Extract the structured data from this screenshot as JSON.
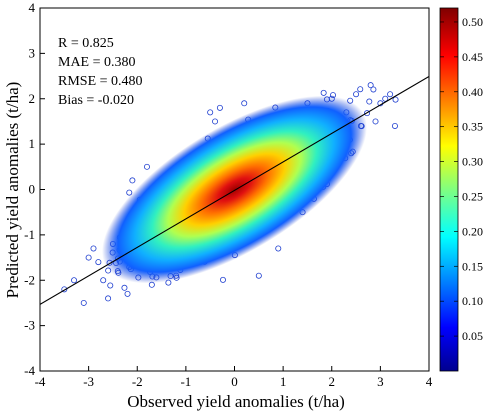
{
  "chart_data": {
    "type": "scatter",
    "title": "",
    "xlabel": "Observed yield  anomalies (t/ha)",
    "ylabel": "Predicted yield  anomalies (t/ha)",
    "xlim": [
      -4,
      4
    ],
    "ylim": [
      -4,
      4
    ],
    "xticks": [
      "-4",
      "-3",
      "-2",
      "-1",
      "0",
      "1",
      "2",
      "3",
      "4"
    ],
    "yticks": [
      "-4",
      "-3",
      "-2",
      "-1",
      "0",
      "1",
      "2",
      "3",
      "4"
    ],
    "grid": false,
    "stats": [
      "R = 0.825",
      "MAE = 0.380",
      "RMSE = 0.480",
      "Bias = -0.020"
    ],
    "fit_line": {
      "slope": 0.628,
      "intercept": -0.02,
      "color": "#000000"
    },
    "density_colorbar": {
      "min": 0,
      "max": 0.52,
      "ticks": [
        "0.05",
        "0.10",
        "0.15",
        "0.20",
        "0.25",
        "0.30",
        "0.35",
        "0.40",
        "0.45",
        "0.50"
      ],
      "colormap": "jet"
    },
    "series": [
      {
        "marker": "circle-open",
        "color": "#1f3fd0",
        "points_description": "dense elliptical cloud centered near (0, 0), density-colored from blue (low) to red (high)",
        "sample_points": [
          [
            -3.5,
            -2.2
          ],
          [
            -3.3,
            -2.0
          ],
          [
            -3.1,
            -2.5
          ],
          [
            -2.9,
            -1.3
          ],
          [
            -2.8,
            -1.6
          ],
          [
            -2.7,
            -2.0
          ],
          [
            -2.5,
            -1.2
          ],
          [
            -2.4,
            -1.8
          ],
          [
            -2.2,
            -2.3
          ],
          [
            -2.0,
            -0.9
          ],
          [
            -1.9,
            -1.5
          ],
          [
            -1.7,
            -2.1
          ],
          [
            -1.5,
            -0.6
          ],
          [
            -1.4,
            -1.3
          ],
          [
            -1.2,
            -1.9
          ],
          [
            -1.1,
            -0.2
          ],
          [
            -1.0,
            -0.9
          ],
          [
            -0.8,
            0.4
          ],
          [
            -0.7,
            -1.5
          ],
          [
            -0.5,
            0.8
          ],
          [
            -0.4,
            -0.5
          ],
          [
            -0.2,
            1.0
          ],
          [
            0.0,
            -1.1
          ],
          [
            0.1,
            0.9
          ],
          [
            0.3,
            -0.4
          ],
          [
            0.5,
            1.3
          ],
          [
            0.6,
            -0.8
          ],
          [
            0.8,
            1.2
          ],
          [
            1.0,
            -0.3
          ],
          [
            1.1,
            1.6
          ],
          [
            1.3,
            0.4
          ],
          [
            1.4,
            -0.5
          ],
          [
            1.5,
            1.9
          ],
          [
            1.6,
            0.9
          ],
          [
            1.8,
            1.5
          ],
          [
            1.9,
            0.3
          ],
          [
            2.0,
            2.0
          ],
          [
            2.1,
            1.1
          ],
          [
            2.3,
            1.7
          ],
          [
            2.4,
            0.8
          ],
          [
            2.5,
            2.1
          ],
          [
            2.6,
            1.4
          ],
          [
            2.8,
            2.3
          ],
          [
            2.9,
            1.5
          ],
          [
            3.0,
            1.9
          ],
          [
            3.1,
            2.0
          ],
          [
            3.2,
            2.1
          ],
          [
            3.3,
            1.4
          ],
          [
            -0.5,
            1.7
          ],
          [
            -0.3,
            1.8
          ],
          [
            -0.4,
            1.5
          ],
          [
            0.2,
            1.9
          ],
          [
            -2.1,
            0.2
          ],
          [
            -1.8,
            0.5
          ],
          [
            0.5,
            -1.9
          ],
          [
            0.9,
            -1.3
          ],
          [
            -3.0,
            -1.5
          ],
          [
            -2.6,
            -2.4
          ]
        ]
      }
    ]
  }
}
